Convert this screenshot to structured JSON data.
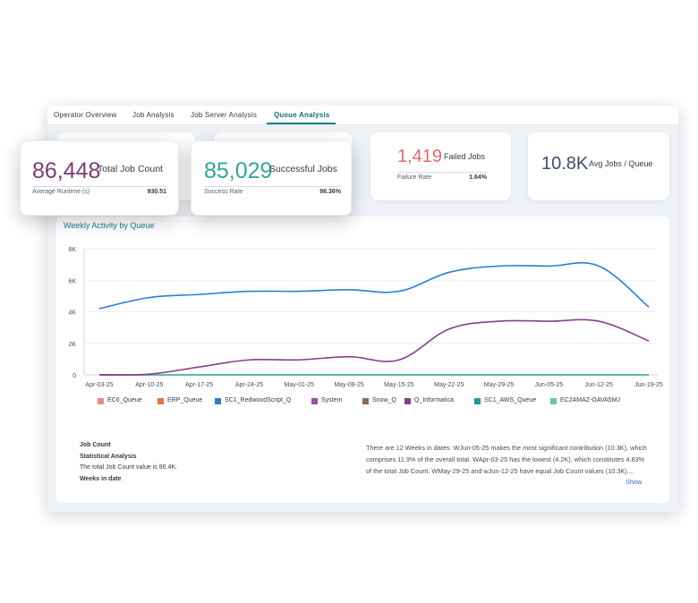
{
  "tabs": [
    "Operator Overview",
    "Job Analysis",
    "Job Server Analysis",
    "Queue Analysis"
  ],
  "kpi": {
    "total": {
      "value": "86,448",
      "label": "Total Job Count",
      "sub_label": "Average Runtime (s)",
      "sub_value": "930.51"
    },
    "successful": {
      "value": "85,029",
      "label": "Successful Jobs",
      "sub_label": "Success Rate",
      "sub_value": "98.36%"
    },
    "failed": {
      "value": "1,419",
      "label": "Failed Jobs",
      "sub_label": "Failure Rate",
      "sub_value": "1.64%"
    },
    "avg": {
      "value": "10.8K",
      "label": "Avg Jobs / Queue"
    }
  },
  "colors": {
    "accent": "#1a7d8c",
    "total": "#7a3a78",
    "success": "#2fa89a",
    "failed": "#e06b73",
    "avg": "#3d4d6e"
  },
  "chart_data": {
    "type": "line",
    "title": "Weekly Activity by Queue",
    "x": [
      "Apr-03-25",
      "Apr-10-25",
      "Apr-17-25",
      "Apr-24-25",
      "May-01-25",
      "May-08-25",
      "May-15-25",
      "May-22-25",
      "May-29-25",
      "Jun-05-25",
      "Jun-12-25",
      "Jun-19-25"
    ],
    "y_ticks": [
      "0",
      "2K",
      "4K",
      "6K",
      "8K"
    ],
    "ylim": [
      0,
      8000
    ],
    "grid": true,
    "legend_position": "bottom",
    "series": [
      {
        "name": "EC6_Queue",
        "color": "#e88a86",
        "values": [
          0,
          0,
          0,
          0,
          0,
          0,
          0,
          0,
          0,
          0,
          0,
          0
        ]
      },
      {
        "name": "ERP_Queue",
        "color": "#e0743d",
        "values": [
          0,
          0,
          0,
          0,
          0,
          0,
          0,
          0,
          0,
          0,
          0,
          0
        ]
      },
      {
        "name": "SC1_RedwoodScript_Q",
        "color": "#2a7dd6",
        "values": [
          4200,
          4900,
          5100,
          5300,
          5300,
          5400,
          5300,
          6500,
          6900,
          6900,
          6900,
          4300
        ]
      },
      {
        "name": "System",
        "color": "#9b4fa6",
        "values": [
          0,
          0,
          0,
          0,
          0,
          0,
          0,
          0,
          0,
          0,
          0,
          0
        ]
      },
      {
        "name": "Snow_Q",
        "color": "#8a6d5c",
        "values": [
          0,
          0,
          0,
          0,
          0,
          0,
          0,
          0,
          0,
          0,
          0,
          0
        ]
      },
      {
        "name": "Q_Informatica",
        "color": "#8a3d8c",
        "values": [
          0,
          50,
          500,
          950,
          950,
          1150,
          950,
          2900,
          3400,
          3400,
          3400,
          2150
        ]
      },
      {
        "name": "SC1_AWS_Queue",
        "color": "#1a9aa0",
        "values": [
          0,
          0,
          0,
          0,
          0,
          0,
          0,
          0,
          0,
          0,
          0,
          0
        ]
      },
      {
        "name": "EC2AMAZ-OAVA5MJ",
        "color": "#5cc9b4",
        "values": [
          0,
          0,
          0,
          0,
          0,
          0,
          0,
          0,
          0,
          0,
          0,
          0
        ]
      }
    ]
  },
  "stats": {
    "heading": "Job Count",
    "subheading": "Statistical Analysis",
    "summary": "The total Job Count value is 86.4K.",
    "dim": "Weeks in date",
    "narrative": "There are 12 Weeks in dates. WJun-05-25 makes the most significant contribution (10.3K), which comprises 11.9% of the overall total. WApr-03-25 has the lowest (4.2K), which constitutes 4.83% of the total Job Count. WMay-29-25 and wJun-12-25 have equal Job Count values (10.3K)....",
    "show_label": "Show"
  }
}
